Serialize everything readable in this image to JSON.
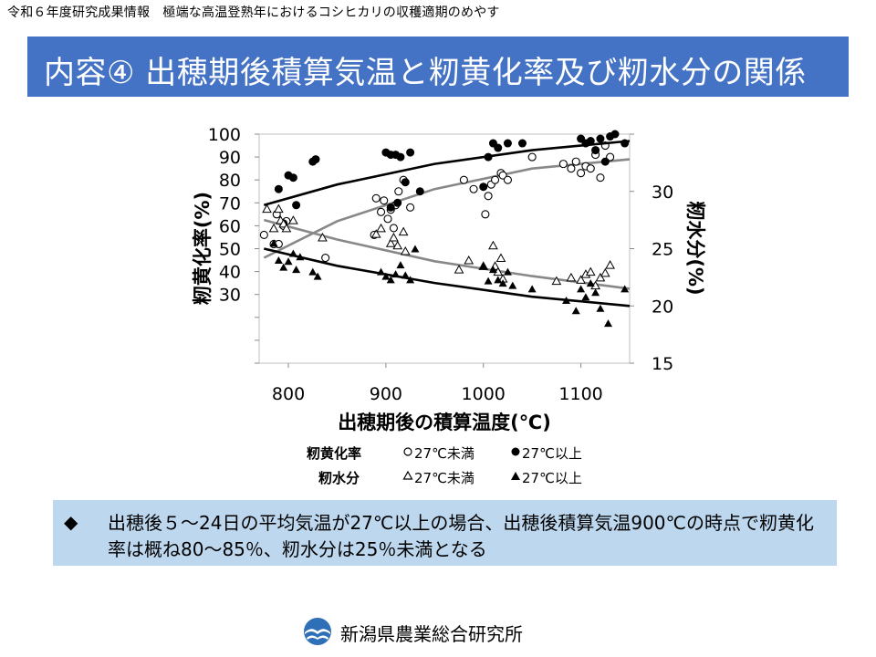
{
  "header": {
    "caption": "令和６年度研究成果情報　極端な高温登熟年におけるコシヒカリの収穫適期のめやす"
  },
  "title": {
    "text": "内容④ 出穂期後積算気温と籾黄化率及び籾水分の関係"
  },
  "legend": {
    "yellowing_label": "籾黄化率",
    "moisture_label": "籾水分",
    "below_27": "27℃未満",
    "above_27": "27℃以上"
  },
  "note": {
    "bullet": "◆",
    "text": "出穂後５～24日の平均気温が27℃以上の場合、出穂後積算気温900℃の時点で籾黄化率は概ね80～85％、籾水分は25％未満となる"
  },
  "footer": {
    "org": "新潟県農業総合研究所"
  },
  "colors": {
    "title_bar": "#4472c4",
    "note_box": "#bdd7ee",
    "curve_above": "#000000",
    "curve_below": "#888888"
  },
  "chart_data": {
    "type": "scatter",
    "xlabel": "出穂期後の積算温度(℃)",
    "ylabel_left": "籾黄化率(%)",
    "ylabel_right": "籾水分(%)",
    "x_ticks": [
      800,
      900,
      1000,
      1100
    ],
    "xlim": [
      770,
      1150
    ],
    "y_left_ticks": [
      30,
      40,
      50,
      60,
      70,
      80,
      90,
      100
    ],
    "ylim_left": [
      0,
      100
    ],
    "y_right_ticks": [
      15,
      20,
      25,
      30
    ],
    "ylim_right": [
      15,
      35
    ],
    "grid": false,
    "series": [
      {
        "name": "籾黄化率 27℃未満",
        "axis": "left",
        "marker": "open-circle",
        "points": [
          [
            775,
            56
          ],
          [
            785,
            52
          ],
          [
            788,
            65
          ],
          [
            790,
            52
          ],
          [
            795,
            60
          ],
          [
            798,
            62
          ],
          [
            838,
            46
          ],
          [
            888,
            56
          ],
          [
            890,
            72
          ],
          [
            895,
            66
          ],
          [
            898,
            71
          ],
          [
            902,
            63
          ],
          [
            905,
            67
          ],
          [
            908,
            59
          ],
          [
            910,
            69
          ],
          [
            913,
            75
          ],
          [
            918,
            80
          ],
          [
            925,
            68
          ],
          [
            980,
            80
          ],
          [
            990,
            76
          ],
          [
            1002,
            65
          ],
          [
            1005,
            73
          ],
          [
            1008,
            78
          ],
          [
            1012,
            80
          ],
          [
            1018,
            83
          ],
          [
            1020,
            82
          ],
          [
            1025,
            80
          ],
          [
            1050,
            90
          ],
          [
            1082,
            87
          ],
          [
            1090,
            85
          ],
          [
            1095,
            88
          ],
          [
            1100,
            83
          ],
          [
            1105,
            86
          ],
          [
            1110,
            85
          ],
          [
            1115,
            91
          ],
          [
            1120,
            81
          ],
          [
            1125,
            95
          ],
          [
            1130,
            90
          ]
        ],
        "trend": [
          [
            775,
            46
          ],
          [
            850,
            62
          ],
          [
            950,
            76
          ],
          [
            1050,
            85
          ],
          [
            1150,
            89
          ]
        ]
      },
      {
        "name": "籾黄化率 27℃以上",
        "axis": "left",
        "marker": "filled-circle",
        "points": [
          [
            790,
            76
          ],
          [
            795,
            61
          ],
          [
            800,
            82
          ],
          [
            805,
            81
          ],
          [
            808,
            69
          ],
          [
            825,
            88
          ],
          [
            828,
            89
          ],
          [
            900,
            92
          ],
          [
            905,
            91
          ],
          [
            910,
            91
          ],
          [
            915,
            90
          ],
          [
            920,
            79
          ],
          [
            925,
            92
          ],
          [
            935,
            75
          ],
          [
            905,
            68
          ],
          [
            912,
            70
          ],
          [
            1000,
            77
          ],
          [
            1005,
            90
          ],
          [
            1010,
            96
          ],
          [
            1015,
            94
          ],
          [
            1025,
            96
          ],
          [
            1040,
            96
          ],
          [
            1100,
            98
          ],
          [
            1105,
            96
          ],
          [
            1110,
            97
          ],
          [
            1115,
            93
          ],
          [
            1120,
            98
          ],
          [
            1125,
            88
          ],
          [
            1130,
            99
          ],
          [
            1135,
            100
          ],
          [
            1145,
            96
          ]
        ],
        "trend": [
          [
            775,
            69
          ],
          [
            850,
            78
          ],
          [
            950,
            87
          ],
          [
            1050,
            93
          ],
          [
            1150,
            97
          ]
        ]
      },
      {
        "name": "籾水分 27℃未満",
        "axis": "right",
        "marker": "open-triangle",
        "points": [
          [
            778,
            28.5
          ],
          [
            785,
            26.8
          ],
          [
            790,
            28.5
          ],
          [
            792,
            27.5
          ],
          [
            795,
            27.2
          ],
          [
            798,
            26.8
          ],
          [
            805,
            27.5
          ],
          [
            835,
            26.0
          ],
          [
            890,
            26.3
          ],
          [
            895,
            26.8
          ],
          [
            905,
            25.5
          ],
          [
            908,
            26.0
          ],
          [
            912,
            25.3
          ],
          [
            918,
            26.5
          ],
          [
            920,
            24.8
          ],
          [
            975,
            23.2
          ],
          [
            985,
            24.0
          ],
          [
            1000,
            23.5
          ],
          [
            1010,
            25.3
          ],
          [
            1012,
            23.5
          ],
          [
            1015,
            23.0
          ],
          [
            1018,
            24.2
          ],
          [
            1020,
            22.4
          ],
          [
            1075,
            22.2
          ],
          [
            1090,
            22.5
          ],
          [
            1100,
            22.3
          ],
          [
            1105,
            22.8
          ],
          [
            1110,
            23.0
          ],
          [
            1115,
            21.8
          ],
          [
            1120,
            22.5
          ],
          [
            1125,
            22.9
          ],
          [
            1130,
            23.6
          ]
        ],
        "trend": [
          [
            775,
            27.5
          ],
          [
            850,
            25.8
          ],
          [
            950,
            23.9
          ],
          [
            1050,
            22.6
          ],
          [
            1150,
            21.5
          ]
        ]
      },
      {
        "name": "籾水分 27℃以上",
        "axis": "right",
        "marker": "filled-triangle",
        "points": [
          [
            785,
            25.5
          ],
          [
            790,
            24.0
          ],
          [
            795,
            23.4
          ],
          [
            800,
            23.9
          ],
          [
            805,
            24.6
          ],
          [
            808,
            23.2
          ],
          [
            812,
            24.3
          ],
          [
            825,
            23.0
          ],
          [
            830,
            22.6
          ],
          [
            895,
            23.0
          ],
          [
            900,
            22.6
          ],
          [
            905,
            22.3
          ],
          [
            910,
            22.8
          ],
          [
            915,
            23.6
          ],
          [
            920,
            22.7
          ],
          [
            925,
            22.3
          ],
          [
            930,
            25.0
          ],
          [
            1000,
            23.5
          ],
          [
            1005,
            22.2
          ],
          [
            1010,
            23.2
          ],
          [
            1015,
            22.3
          ],
          [
            1020,
            22.0
          ],
          [
            1025,
            23.0
          ],
          [
            1030,
            21.8
          ],
          [
            1050,
            21.5
          ],
          [
            1085,
            20.5
          ],
          [
            1095,
            19.6
          ],
          [
            1100,
            21.5
          ],
          [
            1105,
            20.8
          ],
          [
            1110,
            22.0
          ],
          [
            1115,
            21.2
          ],
          [
            1120,
            19.8
          ],
          [
            1128,
            18.5
          ],
          [
            1145,
            21.5
          ]
        ],
        "trend": [
          [
            775,
            25.0
          ],
          [
            850,
            23.5
          ],
          [
            950,
            22.0
          ],
          [
            1050,
            20.8
          ],
          [
            1150,
            20.0
          ]
        ]
      }
    ]
  }
}
